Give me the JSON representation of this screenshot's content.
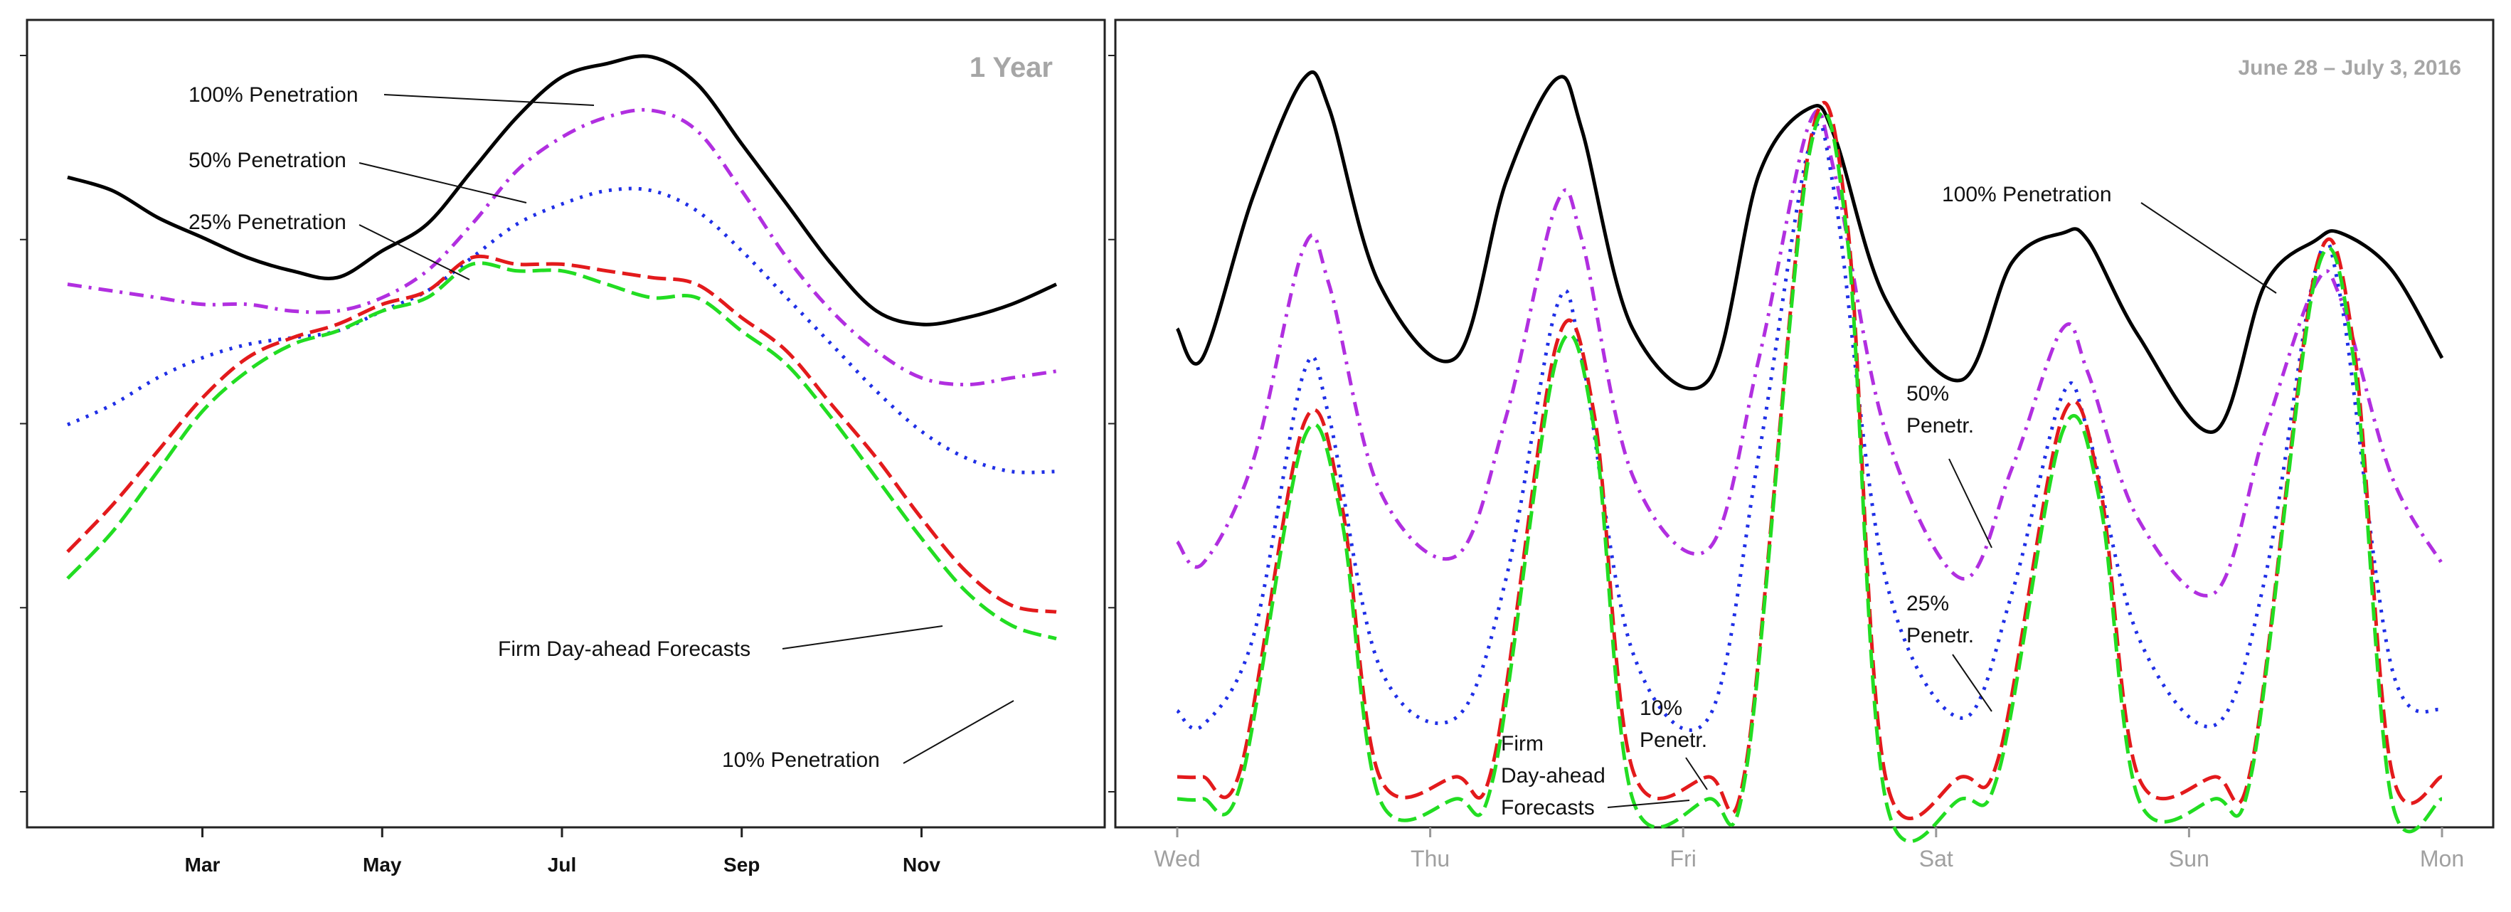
{
  "chart_data": [
    {
      "type": "line",
      "title": "1 Year",
      "xlabel": "",
      "ylabel": "",
      "x_ticks": [
        "Mar",
        "May",
        "Jul",
        "Sep",
        "Nov"
      ],
      "x_range": [
        0.5,
        11.5
      ],
      "y_range": [
        0,
        100
      ],
      "series": [
        {
          "name": "100% Penetration",
          "color": "#000000",
          "dash": "solid",
          "x": [
            0.5,
            1,
            1.5,
            2,
            2.5,
            3,
            3.5,
            4,
            4.5,
            5,
            5.5,
            6,
            6.5,
            7,
            7.5,
            8,
            8.5,
            9,
            9.5,
            10,
            10.5,
            11,
            11.5
          ],
          "values": [
            82,
            80,
            76,
            73,
            70,
            68,
            67,
            71,
            75,
            83,
            91,
            97,
            99,
            100,
            96,
            87,
            78,
            69,
            62,
            60,
            61,
            63,
            66
          ]
        },
        {
          "name": "50% Penetration",
          "color": "#b12fe0",
          "dash": "dashdot",
          "x": [
            0.5,
            1,
            1.5,
            2,
            2.5,
            3,
            3.5,
            4,
            4.5,
            5,
            5.5,
            6,
            6.5,
            7,
            7.5,
            8,
            8.5,
            9,
            9.5,
            10,
            10.5,
            11,
            11.5
          ],
          "values": [
            66,
            65,
            64,
            63,
            63,
            62,
            62,
            64,
            68,
            75,
            83,
            88,
            91,
            92,
            89,
            80,
            70,
            62,
            56,
            52,
            51,
            52,
            53
          ]
        },
        {
          "name": "25% Penetration",
          "color": "#1f2fe6",
          "dash": "dotted",
          "x": [
            0.5,
            1,
            1.5,
            2,
            2.5,
            3,
            3.5,
            4,
            4.5,
            5,
            5.5,
            6,
            6.5,
            7,
            7.5,
            8,
            8.5,
            9,
            9.5,
            10,
            10.5,
            11,
            11.5
          ],
          "values": [
            45,
            48,
            52,
            55,
            57,
            58,
            59,
            62,
            65,
            70,
            75,
            78,
            80,
            80,
            77,
            71,
            64,
            57,
            50,
            44,
            40,
            38,
            38
          ]
        },
        {
          "name": "10% Penetration",
          "color": "#e31a1c",
          "dash": "dashed",
          "x": [
            0.5,
            1,
            1.5,
            2,
            2.5,
            3,
            3.5,
            4,
            4.5,
            5,
            5.5,
            6,
            6.5,
            7,
            7.5,
            8,
            8.5,
            9,
            9.5,
            10,
            10.5,
            11,
            11.5
          ],
          "values": [
            26,
            33,
            41,
            49,
            55,
            58,
            60,
            63,
            65,
            70,
            69,
            69,
            68,
            67,
            66,
            61,
            56,
            48,
            40,
            31,
            23,
            18,
            17
          ]
        },
        {
          "name": "Firm Day-ahead Forecasts",
          "color": "#22dd22",
          "dash": "dashed",
          "x": [
            0.5,
            1,
            1.5,
            2,
            2.5,
            3,
            3.5,
            4,
            4.5,
            5,
            5.5,
            6,
            6.5,
            7,
            7.5,
            8,
            8.5,
            9,
            9.5,
            10,
            10.5,
            11,
            11.5
          ],
          "values": [
            22,
            29,
            38,
            47,
            53,
            57,
            59,
            62,
            64,
            69,
            68,
            68,
            66,
            64,
            64,
            59,
            54,
            46,
            37,
            28,
            20,
            15,
            13
          ]
        }
      ],
      "annotations": [
        "100% Penetration",
        "50% Penetration",
        "25% Penetration",
        "Firm Day-ahead Forecasts",
        "10% Penetration"
      ]
    },
    {
      "type": "line",
      "title": "June 28 – July 3, 2016",
      "xlabel": "",
      "ylabel": "",
      "x_ticks": [
        "Wed",
        "Thu",
        "Fri",
        "Sat",
        "Sun",
        "Mon"
      ],
      "x_range": [
        0,
        5
      ],
      "y_range": [
        0,
        100
      ],
      "series": [
        {
          "name": "100% Penetration",
          "color": "#000000",
          "dash": "solid",
          "x": [
            0,
            0.1,
            0.3,
            0.5,
            0.6,
            0.8,
            1.1,
            1.3,
            1.5,
            1.6,
            1.8,
            2.1,
            2.3,
            2.5,
            2.6,
            2.8,
            3.1,
            3.3,
            3.5,
            3.6,
            3.8,
            4.1,
            4.3,
            4.5,
            4.6,
            4.8,
            5
          ],
          "values": [
            64,
            60,
            82,
            98,
            94,
            70,
            60,
            84,
            98,
            91,
            64,
            57,
            85,
            94,
            90,
            68,
            57,
            73,
            77,
            76,
            63,
            50,
            70,
            76,
            77,
            72,
            60
          ]
        },
        {
          "name": "50% Penetration",
          "color": "#b12fe0",
          "dash": "dashdot",
          "x": [
            0,
            0.1,
            0.3,
            0.5,
            0.6,
            0.8,
            1.1,
            1.3,
            1.5,
            1.6,
            1.8,
            2.1,
            2.3,
            2.5,
            2.6,
            2.8,
            3.1,
            3.3,
            3.5,
            3.6,
            3.8,
            4.1,
            4.3,
            4.5,
            4.6,
            4.8,
            5
          ],
          "values": [
            35,
            32,
            46,
            75,
            70,
            42,
            33,
            52,
            81,
            76,
            44,
            34,
            60,
            92,
            85,
            50,
            30,
            45,
            64,
            58,
            38,
            28,
            50,
            70,
            68,
            44,
            32
          ]
        },
        {
          "name": "25% Penetration",
          "color": "#1f2fe6",
          "dash": "dotted",
          "x": [
            0,
            0.1,
            0.3,
            0.5,
            0.6,
            0.8,
            1.1,
            1.3,
            1.5,
            1.6,
            1.8,
            2.1,
            2.3,
            2.5,
            2.6,
            2.8,
            3.1,
            3.3,
            3.5,
            3.6,
            3.8,
            4.1,
            4.3,
            4.5,
            4.6,
            4.8,
            5
          ],
          "values": [
            12,
            10,
            22,
            58,
            52,
            18,
            11,
            30,
            67,
            60,
            20,
            11,
            47,
            89,
            82,
            30,
            11,
            28,
            55,
            50,
            22,
            10,
            30,
            72,
            68,
            18,
            12
          ]
        },
        {
          "name": "10% Penetration",
          "color": "#e31a1c",
          "dash": "dashed",
          "x": [
            0,
            0.1,
            0.25,
            0.5,
            0.65,
            0.8,
            1.1,
            1.25,
            1.5,
            1.65,
            1.8,
            2.1,
            2.25,
            2.5,
            2.65,
            2.8,
            3.1,
            3.25,
            3.5,
            3.65,
            3.8,
            4.1,
            4.25,
            4.5,
            4.65,
            4.8,
            5
          ],
          "values": [
            3,
            3,
            4,
            51,
            40,
            3,
            3,
            5,
            62,
            52,
            4,
            3,
            5,
            89,
            78,
            3,
            3,
            6,
            52,
            42,
            3,
            3,
            5,
            72,
            62,
            4,
            3
          ]
        },
        {
          "name": "Firm Day-ahead Forecasts",
          "color": "#22dd22",
          "dash": "dashed",
          "x": [
            0,
            0.1,
            0.25,
            0.5,
            0.65,
            0.8,
            1.1,
            1.25,
            1.5,
            1.65,
            1.8,
            2.1,
            2.25,
            2.5,
            2.65,
            2.8,
            3.1,
            3.25,
            3.5,
            3.65,
            3.8,
            4.1,
            4.25,
            4.5,
            4.65,
            4.8,
            5
          ],
          "values": [
            0,
            0,
            2,
            49,
            38,
            0,
            0,
            3,
            60,
            50,
            0,
            0,
            4,
            88,
            76,
            0,
            0,
            4,
            50,
            40,
            0,
            0,
            4,
            71,
            60,
            0,
            0
          ]
        }
      ],
      "annotations": [
        "100% Penetration",
        "50%",
        "Penetr.",
        "25%",
        "Penetr.",
        "Firm",
        "Day-ahead",
        "Forecasts",
        "10%",
        "Penetr."
      ]
    }
  ]
}
